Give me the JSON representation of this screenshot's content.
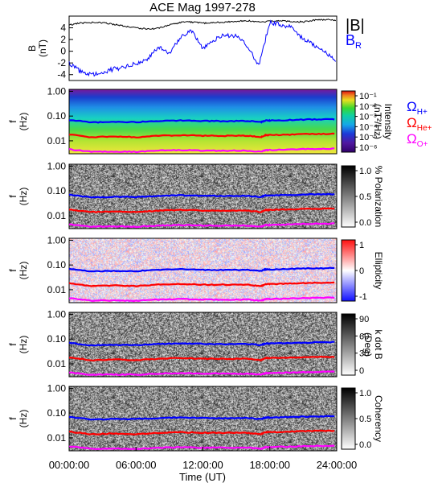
{
  "title": "ACE Mag 1997-278",
  "xlabel": "Time (UT)",
  "x_ticks": [
    "00:00:00",
    "06:00:00",
    "12:00:00",
    "18:00:00",
    "24:00:00"
  ],
  "freq_ticks": [
    "1.00",
    "0.10",
    "0.01"
  ],
  "f_label_1": "f",
  "f_label_2": "(Hz)",
  "legend": {
    "B_mag": "|B|",
    "B_R": "B",
    "B_R_sub": "R",
    "omega": "Ω",
    "H_sub": "H+",
    "He_sub": "He+",
    "O_sub": "O+"
  },
  "panels": [
    {
      "id": "intensity",
      "cbar_label_1": "Intensity",
      "cbar_label_2": "(nT²/Hz)",
      "cbar_ticks": [
        "10⁻¹",
        "10⁻²",
        "10⁻³",
        "10⁻⁴",
        "10⁻⁵",
        "10⁻⁶"
      ]
    },
    {
      "id": "polarization",
      "cbar_label_1": "% Polarization",
      "cbar_label_2": "",
      "cbar_ticks": [
        "1.0",
        "0.5",
        "0.0"
      ]
    },
    {
      "id": "ellipticity",
      "cbar_label_1": "Ellipticity",
      "cbar_label_2": "",
      "cbar_ticks": [
        "1",
        "0",
        "-1"
      ]
    },
    {
      "id": "kdotb",
      "cbar_label_1": "k dot B",
      "cbar_label_2": "(Deg)",
      "cbar_ticks": [
        "90",
        "60",
        "30",
        "0"
      ]
    },
    {
      "id": "coherency",
      "cbar_label_1": "Coherency",
      "cbar_label_2": "",
      "cbar_ticks": [
        "1.0",
        "0.5",
        "0.0"
      ]
    }
  ],
  "colors": {
    "B_mag": "#000000",
    "B_R": "#0000ff",
    "H": "#0000ff",
    "He": "#ff0000",
    "O": "#ff00ff"
  },
  "chart_data": {
    "type": "line",
    "title": "ACE Mag 1997-278",
    "xlabel": "Time (UT)",
    "xlim": [
      0,
      24
    ],
    "B_panel": {
      "ylabel_1": "B",
      "ylabel_2": "(nT)",
      "y_ticks": [
        "4",
        "2",
        "0",
        "-2",
        "-4"
      ],
      "ylim": [
        -5,
        6
      ],
      "series": [
        {
          "name": "|B|",
          "x": [
            0,
            1,
            2,
            3,
            4,
            5,
            6,
            7,
            8,
            9,
            10,
            11,
            12,
            13,
            14,
            15,
            16,
            17,
            18,
            19,
            20,
            21,
            22,
            23,
            24
          ],
          "values": [
            4.5,
            4.8,
            4.9,
            4.9,
            4.6,
            4.3,
            4.0,
            3.8,
            3.9,
            4.5,
            4.9,
            5.0,
            4.8,
            4.9,
            5.0,
            5.1,
            5.2,
            5.0,
            5.1,
            5.2,
            5.1,
            5.0,
            5.3,
            5.4,
            5.3
          ]
        },
        {
          "name": "B_R",
          "x": [
            0,
            1,
            2,
            3,
            4,
            5,
            6,
            7,
            8,
            9,
            10,
            11,
            12,
            13,
            14,
            15,
            16,
            17,
            18,
            19,
            20,
            21,
            22,
            23,
            24
          ],
          "values": [
            -2.0,
            -3.5,
            -4.0,
            -3.8,
            -3.0,
            -2.8,
            -2.0,
            -1.5,
            0.8,
            -0.5,
            2.5,
            3.5,
            0.5,
            2.0,
            2.8,
            2.5,
            1.0,
            -2.5,
            5.0,
            4.5,
            4.0,
            2.0,
            1.0,
            0.0,
            -2.0
          ]
        }
      ]
    },
    "frequency_panels": {
      "ylim_hz": [
        0.003,
        1.2
      ],
      "yscale": "log",
      "cyclotron_series": [
        {
          "name": "H+",
          "x": [
            0,
            2,
            4,
            6,
            8,
            10,
            12,
            14,
            16,
            17.2,
            17.6,
            18,
            20,
            22,
            24
          ],
          "values": [
            0.07,
            0.055,
            0.058,
            0.057,
            0.063,
            0.067,
            0.064,
            0.062,
            0.064,
            0.057,
            0.066,
            0.066,
            0.07,
            0.073,
            0.075
          ]
        },
        {
          "name": "He+",
          "x": [
            0,
            2,
            4,
            6,
            8,
            10,
            12,
            14,
            16,
            17.2,
            17.6,
            18,
            20,
            22,
            24
          ],
          "values": [
            0.018,
            0.014,
            0.015,
            0.014,
            0.016,
            0.017,
            0.016,
            0.016,
            0.016,
            0.014,
            0.017,
            0.017,
            0.018,
            0.019,
            0.019
          ]
        },
        {
          "name": "O+",
          "x": [
            0,
            2,
            4,
            6,
            8,
            10,
            12,
            14,
            16,
            17.2,
            17.6,
            18,
            20,
            22,
            24
          ],
          "values": [
            0.0045,
            0.0036,
            0.0037,
            0.0036,
            0.004,
            0.0042,
            0.004,
            0.004,
            0.004,
            0.0036,
            0.0042,
            0.0042,
            0.0045,
            0.0047,
            0.0048
          ]
        }
      ]
    }
  }
}
